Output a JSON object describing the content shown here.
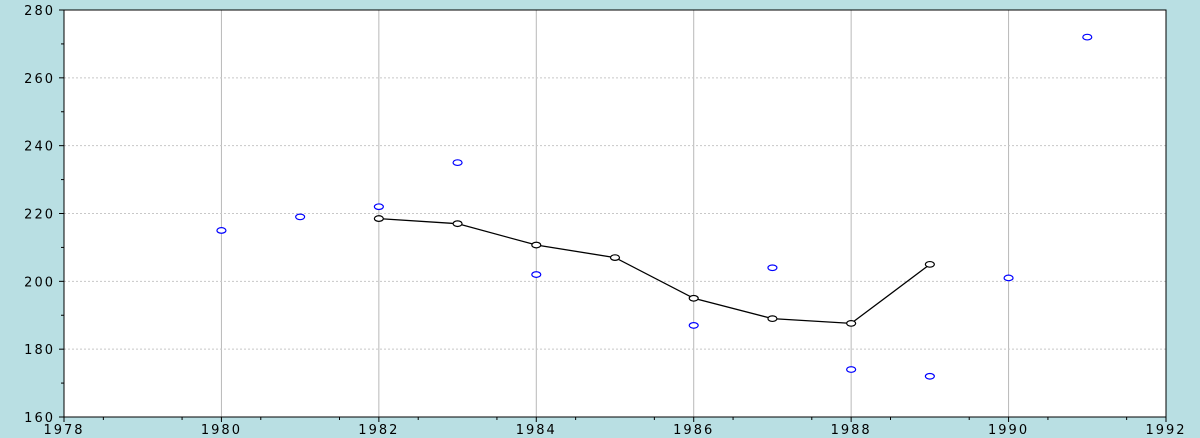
{
  "chart_data": {
    "type": "scatter",
    "title": "",
    "xlabel": "",
    "ylabel": "",
    "xlim": [
      1978,
      1992
    ],
    "ylim": [
      160,
      280
    ],
    "x_ticks": [
      "1978",
      "1980",
      "1982",
      "1984",
      "1986",
      "1988",
      "1990",
      "1992"
    ],
    "y_ticks": [
      "160",
      "180",
      "200",
      "220",
      "240",
      "260",
      "280"
    ],
    "grid": {
      "x_major": true,
      "y_major": true
    },
    "series": [
      {
        "type": "scatter",
        "marker": "open-circle",
        "color": "#0000ff",
        "x": [
          1980,
          1981,
          1982,
          1983,
          1984,
          1986,
          1987,
          1988,
          1989,
          1990,
          1991
        ],
        "y": [
          215,
          219,
          222,
          235,
          202,
          187,
          204,
          174,
          172,
          201,
          272
        ]
      },
      {
        "type": "line",
        "marker": "open-circle",
        "color": "#000000",
        "x": [
          1982,
          1983,
          1984,
          1985,
          1986,
          1987,
          1988,
          1989
        ],
        "y": [
          218.5,
          217,
          210.7,
          207,
          195,
          189,
          187.6,
          205
        ]
      }
    ]
  }
}
